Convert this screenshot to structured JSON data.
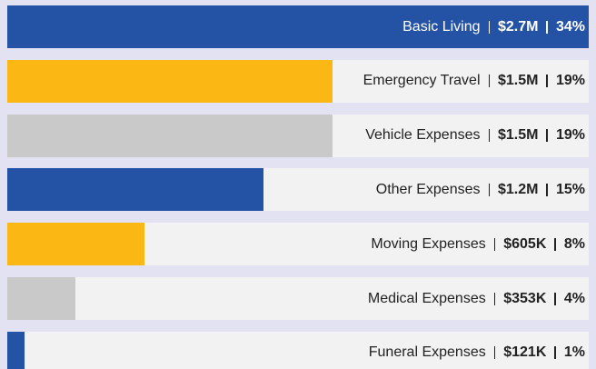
{
  "chart_data": {
    "type": "bar",
    "orientation": "horizontal",
    "categories": [
      "Basic Living",
      "Emergency Travel",
      "Vehicle Expenses",
      "Other Expenses",
      "Moving Expenses",
      "Medical Expenses",
      "Funeral Expenses"
    ],
    "values": [
      34,
      19,
      19,
      15,
      8,
      4,
      1
    ],
    "value_labels": [
      "34%",
      "19%",
      "19%",
      "15%",
      "8%",
      "4%",
      "1%"
    ],
    "amounts": [
      2700000,
      1500000,
      1500000,
      1200000,
      605000,
      353000,
      121000
    ],
    "amount_labels": [
      "$2.7M",
      "$1.5M",
      "$1.5M",
      "$1.2M",
      "$605K",
      "$353K",
      "$121K"
    ],
    "colors": [
      "#2453a6",
      "#fbb714",
      "#c9c9c9",
      "#2453a6",
      "#fbb714",
      "#c9c9c9",
      "#2453a6"
    ],
    "xlim": [
      0,
      34
    ]
  }
}
